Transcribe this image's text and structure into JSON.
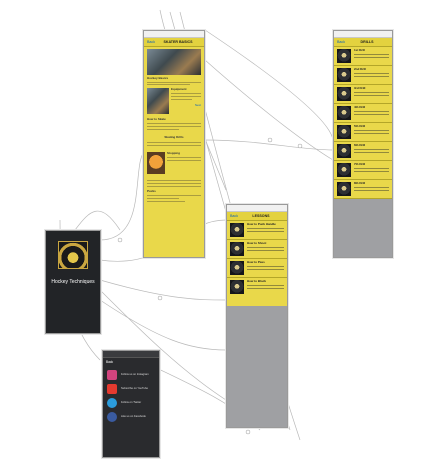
{
  "storyboard": {
    "launch": {
      "title": "Hockey Techniques"
    },
    "skater": {
      "nav_title": "SKATER BASICS",
      "back": "Back",
      "button": "Next",
      "sections": [
        "Hockey Basics",
        "Equipment",
        "How to Skate",
        "Skating Drills",
        "Stopping",
        "Pucks"
      ]
    },
    "lessons": {
      "nav_title": "LESSONS",
      "back": "Back",
      "rows": [
        "How to Puck Handle",
        "How to Shoot",
        "How to Pass",
        "How to Block"
      ]
    },
    "drills": {
      "nav_title": "DRILLS",
      "back": "Back",
      "rows": [
        "1st Drill",
        "2nd Drill",
        "3rd Drill",
        "4th Drill",
        "5th Drill",
        "6th Drill",
        "7th Drill",
        "8th Drill"
      ]
    },
    "social": {
      "header": "Back",
      "items": [
        {
          "name": "instagram-icon",
          "color": "#d2447e",
          "text": "Follow us on Instagram"
        },
        {
          "name": "youtube-icon",
          "color": "#e53a2f",
          "text": "Subscribe on YouTube"
        },
        {
          "name": "twitter-icon",
          "color": "#2b9cdc",
          "text": "Follow on Twitter"
        },
        {
          "name": "facebook-icon",
          "color": "#3a5ba0",
          "text": "Like us on Facebook"
        }
      ]
    }
  }
}
